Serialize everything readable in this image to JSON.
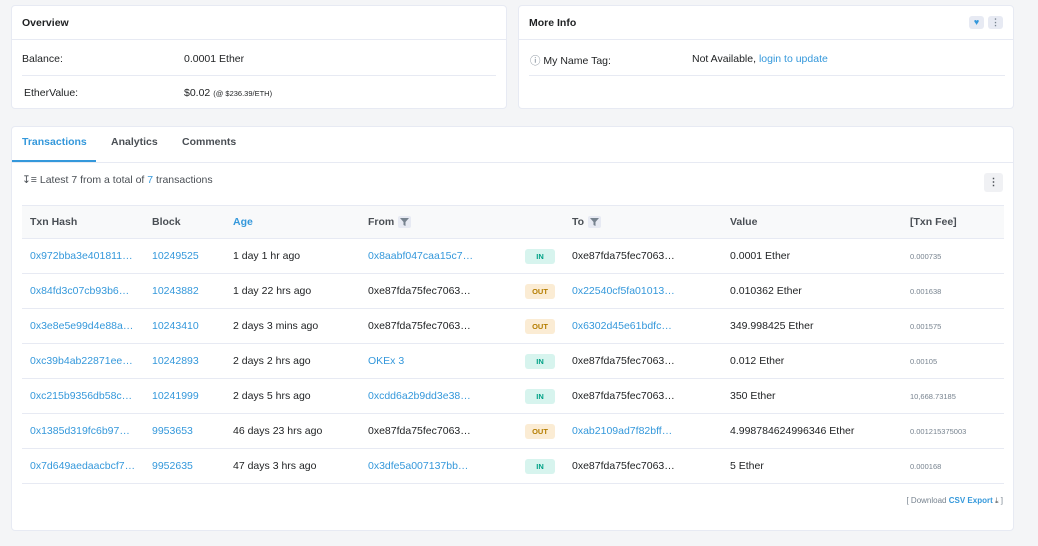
{
  "overview": {
    "title": "Overview",
    "balance_label": "Balance:",
    "balance_value": "0.0001 Ether",
    "ethervalue_label": "EtherValue:",
    "ethervalue_value": "$0.02",
    "ethervalue_rate": "(@ $236.39/ETH)"
  },
  "moreinfo": {
    "title": "More Info",
    "nametag_label": "My Name Tag:",
    "nametag_value": "Not Available,",
    "nametag_link": "login to update"
  },
  "tabs": [
    {
      "label": "Transactions"
    },
    {
      "label": "Analytics"
    },
    {
      "label": "Comments"
    }
  ],
  "summary": {
    "prefix": "Latest 7 from a total of",
    "count": "7",
    "suffix": "transactions"
  },
  "columns": [
    "Txn Hash",
    "Block",
    "Age",
    "From",
    "",
    "To",
    "Value",
    "[Txn Fee]"
  ],
  "rows": [
    {
      "hash": "0x972bba3e401811…",
      "block": "10249525",
      "age": "1 day 1 hr ago",
      "from": "0x8aabf047caa15c7…",
      "from_link": true,
      "dir": "IN",
      "to": "0xe87fda75fec7063…",
      "to_link": false,
      "value": "0.0001 Ether",
      "fee": "0.000735"
    },
    {
      "hash": "0x84fd3c07cb93b6…",
      "block": "10243882",
      "age": "1 day 22 hrs ago",
      "from": "0xe87fda75fec7063…",
      "from_link": false,
      "dir": "OUT",
      "to": "0x22540cf5fa01013…",
      "to_link": true,
      "value": "0.010362 Ether",
      "fee": "0.001638"
    },
    {
      "hash": "0x3e8e5e99d4e88a…",
      "block": "10243410",
      "age": "2 days 3 mins ago",
      "from": "0xe87fda75fec7063…",
      "from_link": false,
      "dir": "OUT",
      "to": "0x6302d45e61bdfc…",
      "to_link": true,
      "value": "349.998425 Ether",
      "fee": "0.001575"
    },
    {
      "hash": "0xc39b4ab22871ee…",
      "block": "10242893",
      "age": "2 days 2 hrs ago",
      "from": "OKEx 3",
      "from_link": true,
      "dir": "IN",
      "to": "0xe87fda75fec7063…",
      "to_link": false,
      "value": "0.012 Ether",
      "fee": "0.00105"
    },
    {
      "hash": "0xc215b9356db58c…",
      "block": "10241999",
      "age": "2 days 5 hrs ago",
      "from": "0xcdd6a2b9dd3e38…",
      "from_link": true,
      "dir": "IN",
      "to": "0xe87fda75fec7063…",
      "to_link": false,
      "value": "350 Ether",
      "fee": "10,668.73185"
    },
    {
      "hash": "0x1385d319fc6b97…",
      "block": "9953653",
      "age": "46 days 23 hrs ago",
      "from": "0xe87fda75fec7063…",
      "from_link": false,
      "dir": "OUT",
      "to": "0xab2109ad7f82bff…",
      "to_link": true,
      "value": "4.998784624996346 Ether",
      "fee": "0.001215375003"
    },
    {
      "hash": "0x7d649aedaacbcf7…",
      "block": "9952635",
      "age": "47 days 3 hrs ago",
      "from": "0x3dfe5a007137bb…",
      "from_link": true,
      "dir": "IN",
      "to": "0xe87fda75fec7063…",
      "to_link": false,
      "value": "5 Ether",
      "fee": "0.000168"
    }
  ],
  "footer": {
    "open": "[ Download",
    "link": "CSV Export",
    "close": "]"
  },
  "colors": {
    "accent": "#3498db",
    "in": "#00a186",
    "out": "#b47d00"
  }
}
